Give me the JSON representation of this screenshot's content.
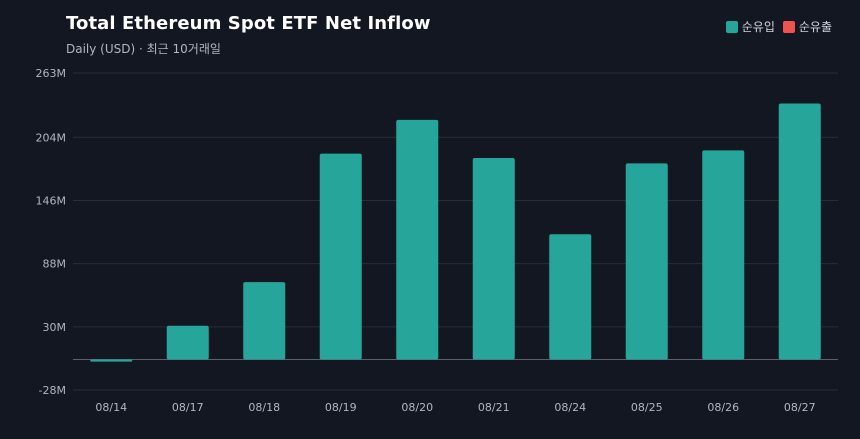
{
  "chart_data": {
    "type": "bar",
    "title": "Total Ethereum Spot ETF Net Inflow",
    "subtitle": "Daily (USD) · 최근 10거래일",
    "categories": [
      "08/14",
      "08/17",
      "08/18",
      "08/19",
      "08/20",
      "08/21",
      "08/24",
      "08/25",
      "08/26",
      "08/27"
    ],
    "values": [
      -2,
      31,
      71,
      189,
      220,
      185,
      115,
      180,
      192,
      235
    ],
    "unit": "M",
    "ylim": [
      -28,
      263
    ],
    "yticks": [
      263,
      204,
      146,
      88,
      30,
      -28
    ],
    "ytick_labels": [
      "263M",
      "204M",
      "146M",
      "88M",
      "30M",
      "-28M"
    ],
    "grid": true,
    "legend_position": "top-right",
    "legend": [
      {
        "label": "순유입",
        "color": "#26a69a"
      },
      {
        "label": "순유출",
        "color": "#ef5350"
      }
    ],
    "colors": {
      "positive": "#26a69a",
      "negative": "#ef5350"
    }
  }
}
